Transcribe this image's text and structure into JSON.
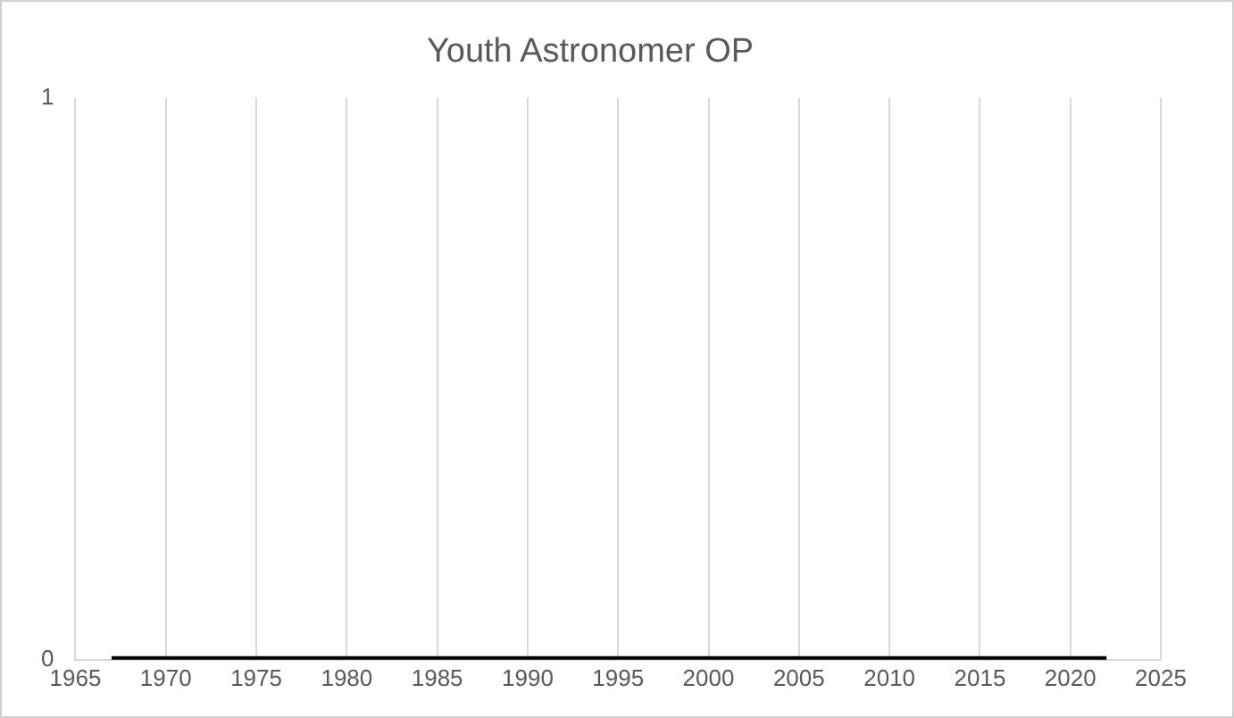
{
  "chart_data": {
    "type": "line",
    "title": "Youth Astronomer OP",
    "x": [
      1967,
      2022
    ],
    "series": [
      {
        "color": "#000000",
        "values": [
          0,
          0
        ]
      }
    ],
    "xlim": [
      1965,
      2025
    ],
    "xticks": [
      1965,
      1970,
      1975,
      1980,
      1985,
      1990,
      1995,
      2000,
      2005,
      2010,
      2015,
      2020,
      2025
    ],
    "ylim": [
      0,
      1
    ],
    "yticks": [
      0,
      1
    ],
    "grid": "x",
    "legend": false,
    "marker": "none",
    "line_style": "solid"
  }
}
